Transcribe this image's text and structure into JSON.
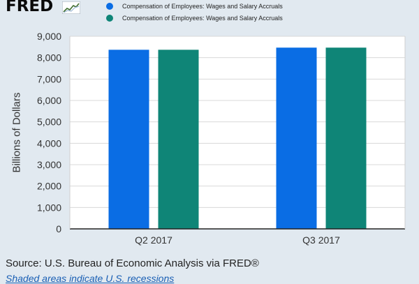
{
  "logo_text": "FRED",
  "chart_data": {
    "type": "bar",
    "categories": [
      "Q2 2017",
      "Q3 2017"
    ],
    "series": [
      {
        "name": "Compensation of Employees: Wages and Salary Accruals",
        "color": "#0a6de4",
        "values": [
          8370,
          8470
        ]
      },
      {
        "name": "Compensation of Employees: Wages and Salary Accruals",
        "color": "#0f8577",
        "values": [
          8370,
          8470
        ]
      }
    ],
    "ylabel": "Billions of Dollars",
    "xlabel": "",
    "ylim": [
      0,
      9000
    ],
    "yticks": [
      "0",
      "1,000",
      "2,000",
      "3,000",
      "4,000",
      "5,000",
      "6,000",
      "7,000",
      "8,000",
      "9,000"
    ],
    "grid": true,
    "legend_position": "top"
  },
  "footer": {
    "source": "Source: U.S. Bureau of Economic Analysis via FRED®",
    "note": "Shaded areas indicate U.S. recessions"
  }
}
